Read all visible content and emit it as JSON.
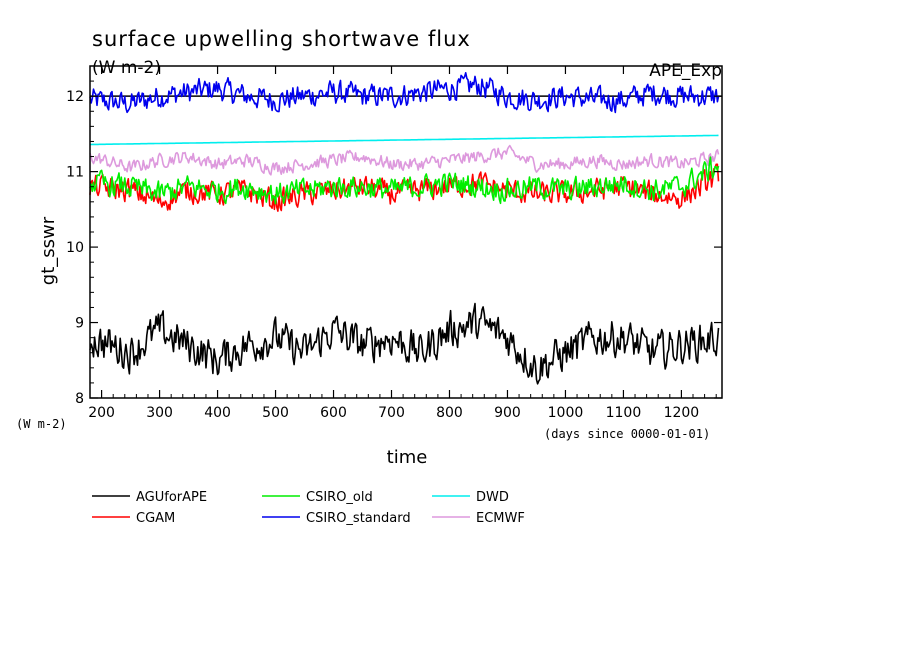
{
  "chart_data": {
    "type": "line",
    "title": "surface upwelling shortwave flux",
    "title_units": "(W m-2)",
    "annotation_top_right": "APE_Exp",
    "xlabel": "time",
    "x_units": "(days since 0000-01-01)",
    "ylabel": "gt_sswr",
    "y_units": "(W m-2)",
    "xlim": [
      180,
      1270
    ],
    "ylim": [
      8,
      12.4
    ],
    "x_ticks": [
      200,
      300,
      400,
      500,
      600,
      700,
      800,
      900,
      1000,
      1100,
      1200
    ],
    "y_ticks": [
      8,
      9,
      10,
      11,
      12
    ],
    "reference_line_y": 12,
    "grid": false,
    "legend_position": "bottom",
    "series": [
      {
        "name": "AGUforAPE",
        "color": "#000000",
        "mean": 8.72,
        "noise": 0.22,
        "x_start": 180,
        "x_end": 1265,
        "x": [
          180,
          250,
          300,
          350,
          400,
          450,
          500,
          550,
          600,
          650,
          700,
          750,
          800,
          850,
          900,
          950,
          1000,
          1050,
          1100,
          1150,
          1200,
          1265
        ],
        "values": [
          8.8,
          8.6,
          8.9,
          8.7,
          8.5,
          8.7,
          8.8,
          8.6,
          8.9,
          8.7,
          8.8,
          8.6,
          8.9,
          9.0,
          8.8,
          8.4,
          8.6,
          8.8,
          8.8,
          8.6,
          8.7,
          8.8
        ]
      },
      {
        "name": "CGAM",
        "color": "#ff0000",
        "mean": 10.72,
        "noise": 0.14,
        "x_start": 180,
        "x_end": 1265,
        "x": [
          180,
          250,
          300,
          350,
          400,
          450,
          500,
          550,
          600,
          650,
          700,
          750,
          800,
          850,
          900,
          950,
          1000,
          1050,
          1100,
          1150,
          1200,
          1265
        ],
        "values": [
          10.8,
          10.75,
          10.6,
          10.75,
          10.7,
          10.75,
          10.6,
          10.7,
          10.75,
          10.8,
          10.7,
          10.75,
          10.8,
          10.85,
          10.75,
          10.7,
          10.7,
          10.75,
          10.8,
          10.7,
          10.65,
          10.95
        ]
      },
      {
        "name": "CSIRO_old",
        "color": "#00ee00",
        "mean": 10.78,
        "noise": 0.14,
        "x_start": 180,
        "x_end": 1265,
        "x": [
          180,
          250,
          300,
          350,
          400,
          450,
          500,
          550,
          600,
          650,
          700,
          750,
          800,
          850,
          900,
          950,
          1000,
          1050,
          1100,
          1150,
          1200,
          1265
        ],
        "values": [
          10.85,
          10.8,
          10.7,
          10.8,
          10.75,
          10.8,
          10.7,
          10.75,
          10.8,
          10.8,
          10.75,
          10.8,
          10.85,
          10.8,
          10.75,
          10.8,
          10.75,
          10.8,
          10.85,
          10.75,
          10.8,
          11.1
        ]
      },
      {
        "name": "CSIRO_standard",
        "color": "#0000ee",
        "mean": 12.0,
        "noise": 0.14,
        "x_start": 180,
        "x_end": 1265,
        "x": [
          180,
          250,
          300,
          350,
          400,
          450,
          500,
          550,
          600,
          650,
          700,
          750,
          800,
          850,
          900,
          950,
          1000,
          1050,
          1100,
          1150,
          1200,
          1265
        ],
        "values": [
          11.95,
          11.9,
          12.0,
          12.05,
          12.1,
          12.0,
          11.95,
          12.0,
          12.05,
          12.0,
          12.0,
          12.05,
          12.1,
          12.15,
          12.0,
          11.95,
          12.0,
          11.95,
          11.95,
          12.05,
          12.0,
          12.0
        ]
      },
      {
        "name": "DWD",
        "color": "#00eeee",
        "mean": 11.42,
        "noise": 0.0,
        "x_start": 180,
        "x_end": 1265,
        "x": [
          180,
          1265
        ],
        "values": [
          11.36,
          11.48
        ]
      },
      {
        "name": "ECMWF",
        "color": "#dd99dd",
        "mean": 11.13,
        "noise": 0.08,
        "x_start": 180,
        "x_end": 1265,
        "x": [
          180,
          250,
          300,
          350,
          400,
          450,
          500,
          550,
          600,
          650,
          700,
          750,
          800,
          850,
          900,
          950,
          1000,
          1050,
          1100,
          1150,
          1200,
          1265
        ],
        "values": [
          11.2,
          11.05,
          11.15,
          11.2,
          11.1,
          11.15,
          11.05,
          11.1,
          11.15,
          11.2,
          11.1,
          11.1,
          11.15,
          11.2,
          11.25,
          11.1,
          11.1,
          11.15,
          11.1,
          11.15,
          11.1,
          11.2
        ]
      }
    ]
  }
}
